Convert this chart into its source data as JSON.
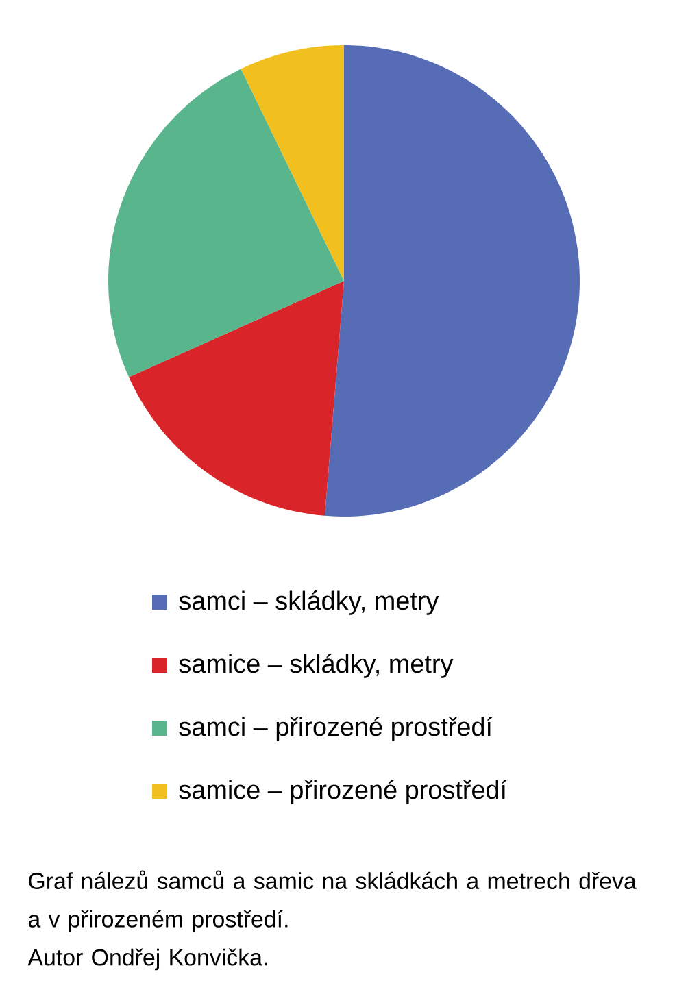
{
  "chart_data": {
    "type": "pie",
    "categories": [
      "samci – skládky, metry",
      "samice – skládky, metry",
      "samci – přirozené prostředí",
      "samice – přirozené prostředí"
    ],
    "values": [
      51.3,
      17,
      24.5,
      7.2
    ],
    "colors": [
      "#566cb5",
      "#d9252a",
      "#58b58c",
      "#f2c01e"
    ],
    "legend": "bottom",
    "annotations": [
      "Graf nálezů samců a samic na skládkách a metrech dřeva a v přirozeném prostředí.",
      "Autor Ondřej Konvička."
    ]
  }
}
